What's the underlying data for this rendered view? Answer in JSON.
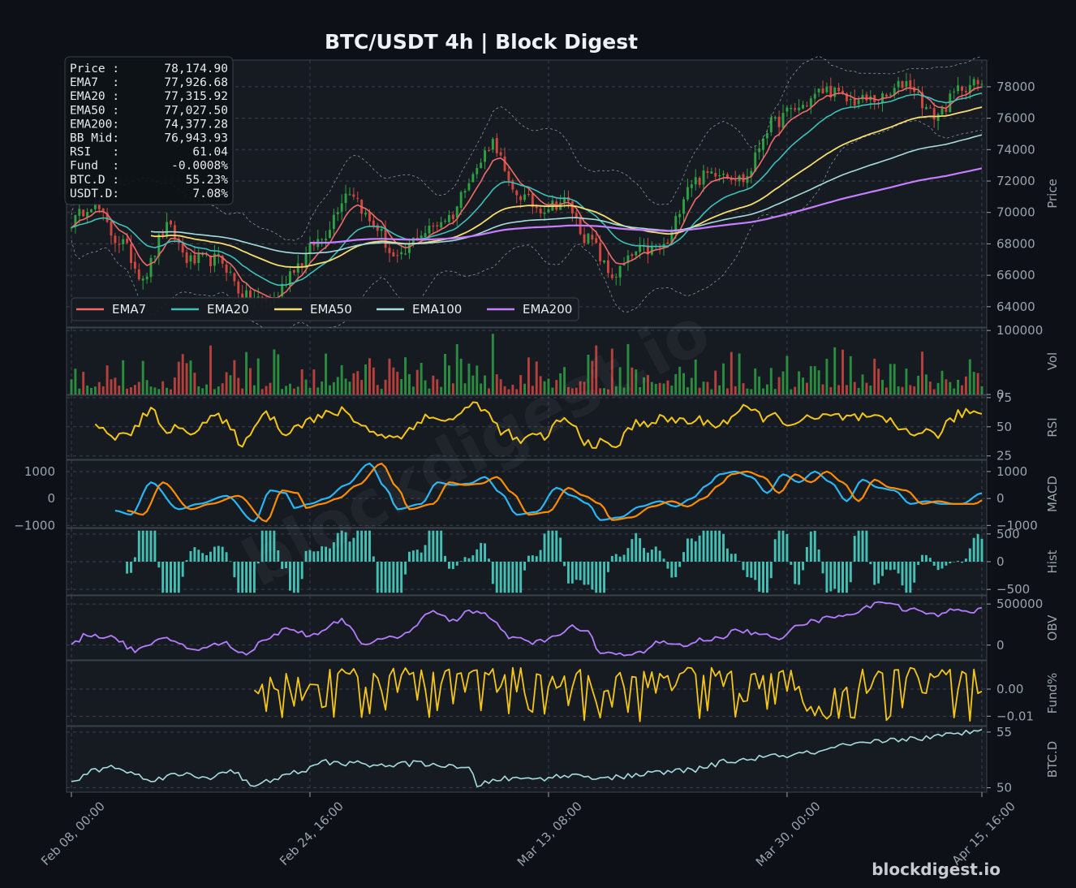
{
  "chart_data": {
    "type": "line",
    "title": "BTC/USDT  4h  |  Block Digest",
    "x_tick_labels": [
      "Feb 08, 00:00",
      "Feb 24, 16:00",
      "Mar 13, 08:00",
      "Mar 30, 00:00",
      "Apr 15, 16:00"
    ],
    "info_box": [
      {
        "label": "Price :",
        "value": "78,174.90"
      },
      {
        "label": "EMA7  :",
        "value": "77,926.68"
      },
      {
        "label": "EMA20 :",
        "value": "77,315.92"
      },
      {
        "label": "EMA50 :",
        "value": "77,027.50"
      },
      {
        "label": "EMA200:",
        "value": "74,377.28"
      },
      {
        "label": "BB Mid:",
        "value": "76,943.93"
      },
      {
        "label": "RSI   :",
        "value": "61.04"
      },
      {
        "label": "Fund  :",
        "value": "-0.0008%"
      },
      {
        "label": "BTC.D :",
        "value": "55.23%"
      },
      {
        "label": "USDT.D:",
        "value": "7.08%"
      }
    ],
    "legend": [
      {
        "name": "EMA7",
        "color": "#ef6a6a"
      },
      {
        "name": "EMA20",
        "color": "#3cc0b8"
      },
      {
        "name": "EMA50",
        "color": "#f5dc6e"
      },
      {
        "name": "EMA100",
        "color": "#a6dcdc"
      },
      {
        "name": "EMA200",
        "color": "#c77dff"
      }
    ],
    "legend_position": "lower-left",
    "grid": true,
    "panels": [
      {
        "id": "price",
        "ylabel": "Price",
        "ylim": [
          62700,
          79700
        ],
        "ticks": [
          {
            "v": 64000,
            "t": "64000"
          },
          {
            "v": 66000,
            "t": "66000"
          },
          {
            "v": 68000,
            "t": "68000"
          },
          {
            "v": 70000,
            "t": "70000"
          },
          {
            "v": 72000,
            "t": "72000"
          },
          {
            "v": 74000,
            "t": "74000"
          },
          {
            "v": 76000,
            "t": "76000"
          },
          {
            "v": 78000,
            "t": "78000"
          }
        ],
        "close_anchors": [
          [
            0,
            69400
          ],
          [
            5,
            70600
          ],
          [
            12,
            68200
          ],
          [
            18,
            66000
          ],
          [
            24,
            69000
          ],
          [
            30,
            66900
          ],
          [
            37,
            67000
          ],
          [
            44,
            64600
          ],
          [
            50,
            64300
          ],
          [
            57,
            66700
          ],
          [
            62,
            68200
          ],
          [
            70,
            71400
          ],
          [
            76,
            69200
          ],
          [
            82,
            66900
          ],
          [
            88,
            68700
          ],
          [
            95,
            69700
          ],
          [
            101,
            72500
          ],
          [
            106,
            74500
          ],
          [
            111,
            71300
          ],
          [
            118,
            70300
          ],
          [
            124,
            70700
          ],
          [
            130,
            68300
          ],
          [
            136,
            66000
          ],
          [
            143,
            67500
          ],
          [
            149,
            67800
          ],
          [
            156,
            72000
          ],
          [
            163,
            72700
          ],
          [
            169,
            72100
          ],
          [
            176,
            75600
          ],
          [
            182,
            76600
          ],
          [
            190,
            77800
          ],
          [
            196,
            77100
          ],
          [
            204,
            77200
          ],
          [
            210,
            78300
          ],
          [
            217,
            76200
          ],
          [
            225,
            78100
          ],
          [
            229,
            78174.9
          ]
        ],
        "ema7_end": 77926.68,
        "ema20_end": 77315.92,
        "ema50_end": 77027.5,
        "ema200_end": 74377.28,
        "bb_mid_end": 76943.93
      },
      {
        "id": "vol",
        "ylabel": "Vol",
        "ylim": [
          0,
          104000
        ],
        "ticks": [
          {
            "v": 0,
            "t": "0"
          },
          {
            "v": 100000,
            "t": "100000"
          }
        ]
      },
      {
        "id": "rsi",
        "ylabel": "RSI",
        "ylim": [
          22,
          77
        ],
        "ticks": [
          {
            "v": 25,
            "t": "25"
          },
          {
            "v": 50,
            "t": "50"
          },
          {
            "v": 75,
            "t": "75"
          }
        ],
        "last": 61.04,
        "anchors": [
          [
            6,
            48
          ],
          [
            14,
            41
          ],
          [
            18,
            57
          ],
          [
            20,
            62
          ],
          [
            25,
            47
          ],
          [
            30,
            48
          ],
          [
            36,
            58
          ],
          [
            44,
            36
          ],
          [
            48,
            63
          ],
          [
            54,
            47
          ],
          [
            60,
            56
          ],
          [
            68,
            63
          ],
          [
            76,
            46
          ],
          [
            82,
            40
          ],
          [
            88,
            57
          ],
          [
            96,
            57
          ],
          [
            102,
            70
          ],
          [
            108,
            48
          ],
          [
            112,
            38
          ],
          [
            118,
            41
          ],
          [
            124,
            56
          ],
          [
            130,
            37
          ],
          [
            136,
            33
          ],
          [
            143,
            54
          ],
          [
            150,
            56
          ],
          [
            156,
            55
          ],
          [
            163,
            53
          ],
          [
            169,
            64
          ],
          [
            176,
            58
          ],
          [
            182,
            54
          ],
          [
            190,
            58
          ],
          [
            196,
            58
          ],
          [
            204,
            55
          ],
          [
            210,
            47
          ],
          [
            217,
            44
          ],
          [
            225,
            63
          ],
          [
            229,
            61.04
          ]
        ]
      },
      {
        "id": "macd",
        "ylabel": "MACD",
        "ylim": [
          -1080,
          1420
        ],
        "ticks": [
          {
            "v": -1000,
            "t": "−1000"
          },
          {
            "v": 0,
            "t": "0"
          },
          {
            "v": 1000,
            "t": "1000"
          }
        ],
        "macd_anchors": [
          [
            11,
            -450
          ],
          [
            15,
            -600
          ],
          [
            20,
            600
          ],
          [
            27,
            -400
          ],
          [
            32,
            -200
          ],
          [
            39,
            100
          ],
          [
            46,
            -850
          ],
          [
            50,
            300
          ],
          [
            54,
            200
          ],
          [
            56,
            -350
          ],
          [
            60,
            -200
          ],
          [
            64,
            0
          ],
          [
            69,
            500
          ],
          [
            75,
            1300
          ],
          [
            79,
            400
          ],
          [
            82,
            -400
          ],
          [
            88,
            -200
          ],
          [
            92,
            600
          ],
          [
            96,
            500
          ],
          [
            100,
            550
          ],
          [
            104,
            800
          ],
          [
            108,
            200
          ],
          [
            112,
            -600
          ],
          [
            117,
            -500
          ],
          [
            122,
            400
          ],
          [
            126,
            100
          ],
          [
            130,
            -200
          ],
          [
            133,
            -800
          ],
          [
            138,
            -700
          ],
          [
            143,
            -300
          ],
          [
            148,
            -100
          ],
          [
            152,
            -300
          ],
          [
            156,
            0
          ],
          [
            160,
            500
          ],
          [
            163,
            900
          ],
          [
            167,
            1000
          ],
          [
            171,
            800
          ],
          [
            175,
            200
          ],
          [
            179,
            900
          ],
          [
            183,
            600
          ],
          [
            187,
            1000
          ],
          [
            191,
            600
          ],
          [
            195,
            -100
          ],
          [
            199,
            700
          ],
          [
            203,
            400
          ],
          [
            207,
            300
          ],
          [
            211,
            -200
          ],
          [
            215,
            -100
          ],
          [
            219,
            -200
          ],
          [
            224,
            -200
          ],
          [
            229,
            200
          ]
        ],
        "signal_lag": 3
      },
      {
        "id": "hist",
        "ylabel": "Hist",
        "ylim": [
          -600,
          600
        ],
        "ticks": [
          {
            "v": -500,
            "t": "−500"
          },
          {
            "v": 0,
            "t": "0"
          },
          {
            "v": 500,
            "t": "500"
          }
        ]
      },
      {
        "id": "obv",
        "ylabel": "OBV",
        "ylim": [
          -180000,
          600000
        ],
        "ticks": [
          {
            "v": 0,
            "t": "0"
          },
          {
            "v": 500000,
            "t": "500000"
          }
        ],
        "anchors": [
          [
            0,
            0
          ],
          [
            4,
            130000
          ],
          [
            10,
            100000
          ],
          [
            16,
            -60000
          ],
          [
            24,
            70000
          ],
          [
            32,
            -60000
          ],
          [
            38,
            30000
          ],
          [
            44,
            -120000
          ],
          [
            48,
            70000
          ],
          [
            55,
            200000
          ],
          [
            60,
            120000
          ],
          [
            68,
            300000
          ],
          [
            74,
            20000
          ],
          [
            80,
            80000
          ],
          [
            84,
            140000
          ],
          [
            90,
            400000
          ],
          [
            96,
            300000
          ],
          [
            100,
            420000
          ],
          [
            104,
            380000
          ],
          [
            106,
            280000
          ],
          [
            110,
            100000
          ],
          [
            116,
            30000
          ],
          [
            122,
            100000
          ],
          [
            126,
            220000
          ],
          [
            130,
            160000
          ],
          [
            133,
            -100000
          ],
          [
            138,
            -120000
          ],
          [
            143,
            -80000
          ],
          [
            148,
            30000
          ],
          [
            154,
            -10000
          ],
          [
            158,
            60000
          ],
          [
            162,
            80000
          ],
          [
            168,
            180000
          ],
          [
            174,
            120000
          ],
          [
            178,
            60000
          ],
          [
            182,
            250000
          ],
          [
            188,
            300000
          ],
          [
            192,
            360000
          ],
          [
            196,
            380000
          ],
          [
            200,
            450000
          ],
          [
            204,
            540000
          ],
          [
            210,
            440000
          ],
          [
            218,
            360000
          ],
          [
            222,
            450000
          ],
          [
            226,
            410000
          ],
          [
            229,
            430000
          ]
        ]
      },
      {
        "id": "fund",
        "ylabel": "Fund%",
        "ylim": [
          -0.0135,
          0.0105
        ],
        "ticks": [
          {
            "v": -0.01,
            "t": "−0.01"
          },
          {
            "v": 0,
            "t": "0.00"
          }
        ],
        "last": -0.0008,
        "start_index": 46
      },
      {
        "id": "btcd",
        "ylabel": "BTC.D",
        "ylim": [
          49.6,
          55.5
        ],
        "ticks": [
          {
            "v": 50,
            "t": "50"
          },
          {
            "v": 55,
            "t": "55"
          }
        ],
        "last": 55.23,
        "anchors": [
          [
            0,
            50.5
          ],
          [
            6,
            51.6
          ],
          [
            10,
            51.9
          ],
          [
            16,
            51.2
          ],
          [
            20,
            50.8
          ],
          [
            28,
            51.2
          ],
          [
            34,
            50.9
          ],
          [
            40,
            51.6
          ],
          [
            46,
            50.1
          ],
          [
            52,
            50.9
          ],
          [
            58,
            51.5
          ],
          [
            64,
            52.3
          ],
          [
            70,
            52.2
          ],
          [
            78,
            52.0
          ],
          [
            88,
            52.2
          ],
          [
            100,
            51.7
          ],
          [
            102,
            50.3
          ],
          [
            108,
            50.8
          ],
          [
            116,
            50.8
          ],
          [
            126,
            51.1
          ],
          [
            136,
            50.9
          ],
          [
            146,
            51.3
          ],
          [
            156,
            51.6
          ],
          [
            166,
            52.4
          ],
          [
            176,
            52.8
          ],
          [
            186,
            53.1
          ],
          [
            196,
            53.8
          ],
          [
            206,
            54.3
          ],
          [
            216,
            54.5
          ],
          [
            222,
            54.8
          ],
          [
            229,
            55.23
          ]
        ]
      }
    ],
    "watermarks": [
      "blockdigest.io",
      "blockdigest.io"
    ]
  },
  "colors": {
    "background": "#0d1117",
    "panel": "#161b22",
    "up": "#2ea043",
    "down": "#d1473f",
    "rsi": "#f5c518",
    "macd": "#29b6f6",
    "signal": "#ff8c00",
    "hist": "#48d1c4",
    "obv": "#b57cff",
    "fund": "#f5c518",
    "btcd": "#a6dcdc",
    "bb": "#8b949e"
  }
}
